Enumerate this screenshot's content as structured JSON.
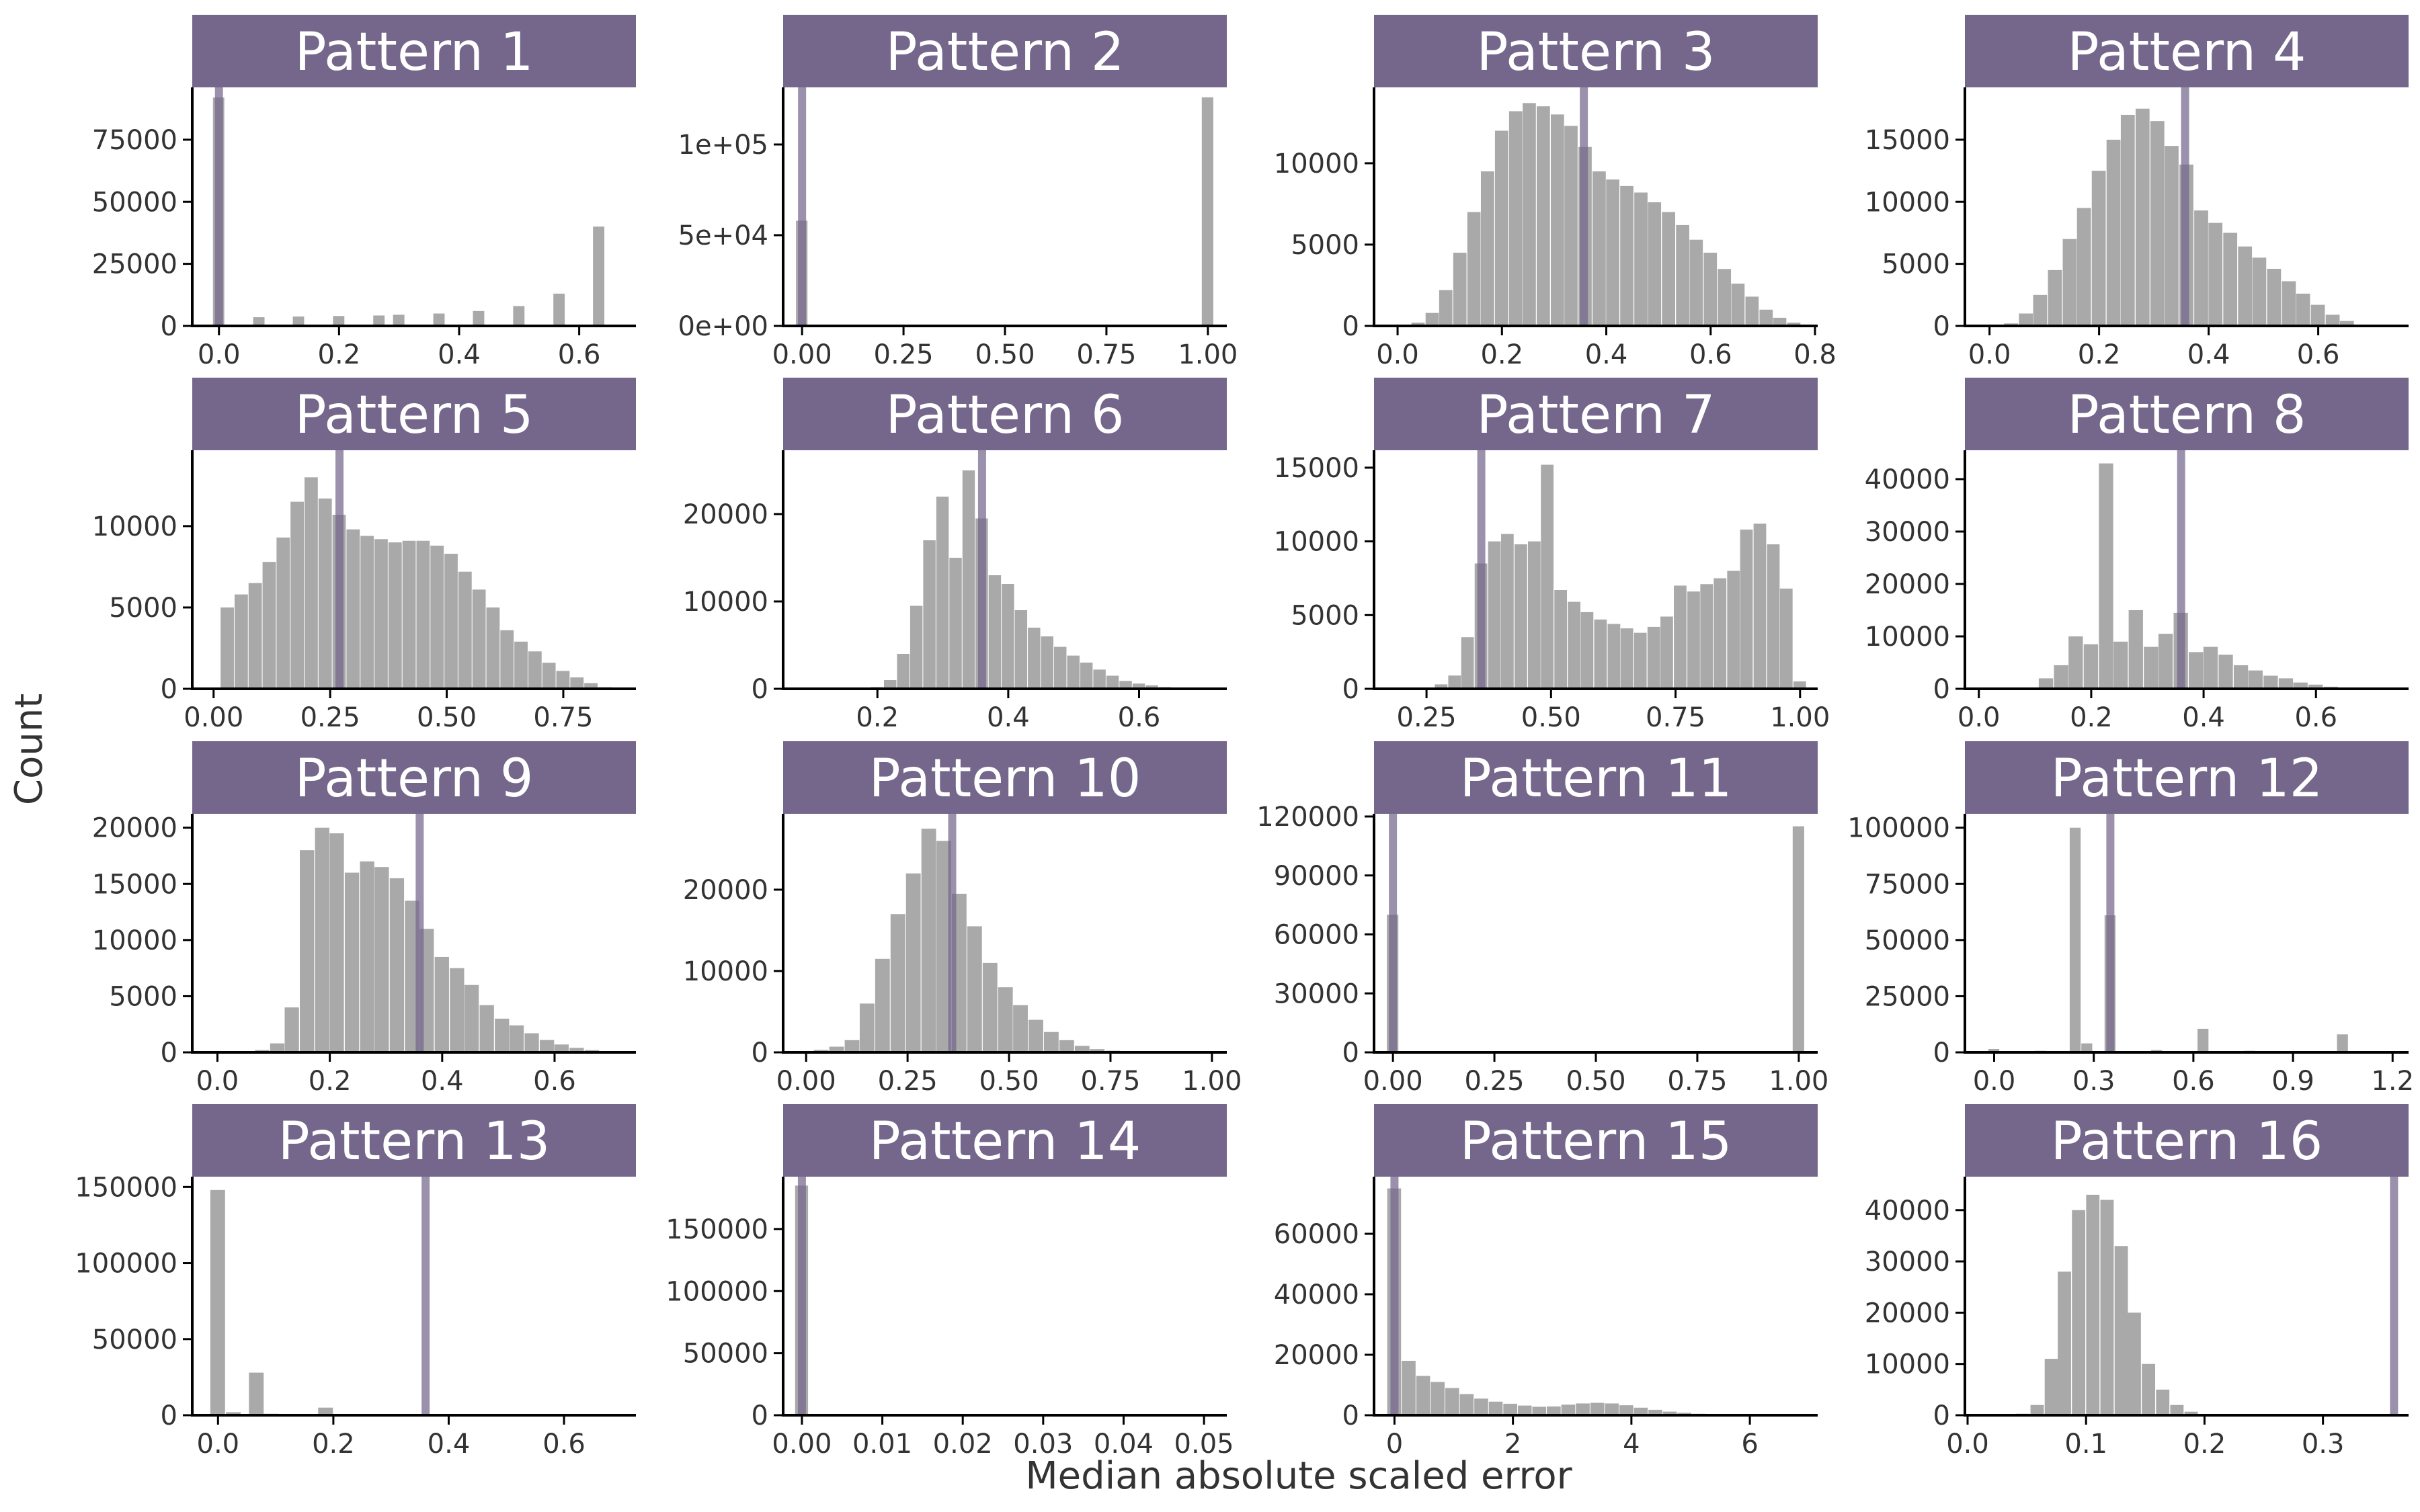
{
  "colors": {
    "strip": "#75668C",
    "bar": "#A9A9A9",
    "vline": "#75668C",
    "axis": "#000000",
    "text": "#333333"
  },
  "labels": {
    "xlabel": "Median absolute scaled error",
    "ylabel": "Count"
  },
  "chart_data": [
    {
      "type": "bar",
      "title": "Pattern 1",
      "xlim": [
        -0.04,
        0.69
      ],
      "ylim": [
        0,
        95000
      ],
      "xticks": [
        0.0,
        0.2,
        0.4,
        0.6
      ],
      "xticklabels": [
        "0.0",
        "0.2",
        "0.4",
        "0.6"
      ],
      "yticks": [
        0,
        25000,
        50000,
        75000
      ],
      "yticklabels": [
        "0",
        "25000",
        "50000",
        "75000"
      ],
      "bin_width": 0.02,
      "vline": 0.0,
      "x": [
        0.0,
        0.067,
        0.133,
        0.2,
        0.267,
        0.3,
        0.367,
        0.433,
        0.5,
        0.567,
        0.633
      ],
      "values": [
        92000,
        3500,
        3800,
        4000,
        4200,
        4500,
        5000,
        6000,
        8000,
        13000,
        40000
      ]
    },
    {
      "type": "bar",
      "title": "Pattern 2",
      "xlim": [
        -0.04,
        1.04
      ],
      "ylim": [
        0,
        130000
      ],
      "xticks": [
        0.0,
        0.25,
        0.5,
        0.75,
        1.0
      ],
      "xticklabels": [
        "0.00",
        "0.25",
        "0.50",
        "0.75",
        "1.00"
      ],
      "yticks": [
        0,
        50000,
        100000
      ],
      "yticklabels": [
        "0e+00",
        "5e+04",
        "1e+05"
      ],
      "bin_width": 0.03,
      "vline": 0.0,
      "x": [
        0.0,
        1.0
      ],
      "values": [
        58000,
        126000
      ]
    },
    {
      "type": "bar",
      "title": "Pattern 3",
      "xlim": [
        -0.04,
        0.8
      ],
      "ylim": [
        0,
        14500
      ],
      "xticks": [
        0.0,
        0.2,
        0.4,
        0.6,
        0.8
      ],
      "xticklabels": [
        "0.0",
        "0.2",
        "0.4",
        "0.6",
        "0.8"
      ],
      "yticks": [
        0,
        5000,
        10000
      ],
      "yticklabels": [
        "0",
        "5000",
        "10000"
      ],
      "bin_width": 0.02667,
      "vline": 0.357,
      "x": [
        0.04,
        0.067,
        0.093,
        0.12,
        0.147,
        0.173,
        0.2,
        0.227,
        0.253,
        0.28,
        0.307,
        0.333,
        0.36,
        0.387,
        0.413,
        0.44,
        0.467,
        0.493,
        0.52,
        0.547,
        0.573,
        0.6,
        0.627,
        0.653,
        0.68,
        0.707,
        0.733,
        0.76
      ],
      "values": [
        200,
        800,
        2200,
        4500,
        7000,
        9500,
        12000,
        13200,
        13700,
        13500,
        13000,
        12300,
        11000,
        9500,
        9000,
        8600,
        8200,
        7600,
        7000,
        6200,
        5300,
        4500,
        3500,
        2600,
        1800,
        1000,
        500,
        200
      ]
    },
    {
      "type": "bar",
      "title": "Pattern 4",
      "xlim": [
        -0.04,
        0.76
      ],
      "ylim": [
        0,
        19000
      ],
      "xticks": [
        0.0,
        0.2,
        0.4,
        0.6
      ],
      "xticklabels": [
        "0.0",
        "0.2",
        "0.4",
        "0.6"
      ],
      "yticks": [
        0,
        5000,
        10000,
        15000
      ],
      "yticklabels": [
        "0",
        "5000",
        "10000",
        "15000"
      ],
      "bin_width": 0.02667,
      "vline": 0.357,
      "x": [
        0.04,
        0.067,
        0.093,
        0.12,
        0.147,
        0.173,
        0.2,
        0.227,
        0.253,
        0.28,
        0.307,
        0.333,
        0.36,
        0.387,
        0.413,
        0.44,
        0.467,
        0.493,
        0.52,
        0.547,
        0.573,
        0.6,
        0.627,
        0.653,
        0.68
      ],
      "values": [
        200,
        1000,
        2500,
        4500,
        7000,
        9500,
        12500,
        15000,
        17000,
        17500,
        16500,
        14500,
        13000,
        9300,
        8300,
        7500,
        6400,
        5500,
        4600,
        3600,
        2600,
        1700,
        900,
        400,
        100
      ]
    },
    {
      "type": "bar",
      "title": "Pattern 5",
      "xlim": [
        -0.04,
        0.9
      ],
      "ylim": [
        0,
        14500
      ],
      "xticks": [
        0.0,
        0.25,
        0.5,
        0.75
      ],
      "xticklabels": [
        "0.00",
        "0.25",
        "0.50",
        "0.75"
      ],
      "yticks": [
        0,
        5000,
        10000
      ],
      "yticklabels": [
        "0",
        "5000",
        "10000"
      ],
      "bin_width": 0.03,
      "vline": 0.27,
      "x": [
        0.03,
        0.06,
        0.09,
        0.12,
        0.15,
        0.18,
        0.21,
        0.24,
        0.27,
        0.3,
        0.33,
        0.36,
        0.39,
        0.42,
        0.45,
        0.48,
        0.51,
        0.54,
        0.57,
        0.6,
        0.63,
        0.66,
        0.69,
        0.72,
        0.75,
        0.78,
        0.81,
        0.84
      ],
      "values": [
        5000,
        5800,
        6500,
        7800,
        9300,
        11500,
        13000,
        11700,
        10700,
        9800,
        9400,
        9200,
        9000,
        9100,
        9100,
        8800,
        8300,
        7200,
        6100,
        5000,
        3600,
        2900,
        2300,
        1600,
        1100,
        700,
        350,
        100
      ]
    },
    {
      "type": "bar",
      "title": "Pattern 6",
      "xlim": [
        0.06,
        0.73
      ],
      "ylim": [
        0,
        27000
      ],
      "xticks": [
        0.2,
        0.4,
        0.6
      ],
      "xticklabels": [
        "0.2",
        "0.4",
        "0.6"
      ],
      "yticks": [
        0,
        10000,
        20000
      ],
      "yticklabels": [
        "0",
        "10000",
        "20000"
      ],
      "bin_width": 0.02,
      "vline": 0.36,
      "x": [
        0.2,
        0.22,
        0.24,
        0.26,
        0.28,
        0.3,
        0.32,
        0.34,
        0.36,
        0.38,
        0.4,
        0.42,
        0.44,
        0.46,
        0.48,
        0.5,
        0.52,
        0.54,
        0.56,
        0.58,
        0.6,
        0.62,
        0.64,
        0.66,
        0.68
      ],
      "values": [
        200,
        1000,
        4000,
        9500,
        17000,
        22000,
        15000,
        25000,
        19500,
        13000,
        12000,
        9000,
        7000,
        6000,
        4800,
        3800,
        3000,
        2200,
        1500,
        900,
        600,
        400,
        200,
        100,
        50
      ]
    },
    {
      "type": "bar",
      "title": "Pattern 7",
      "xlim": [
        0.15,
        1.03
      ],
      "ylim": [
        0,
        16000
      ],
      "xticks": [
        0.25,
        0.5,
        0.75,
        1.0
      ],
      "xticklabels": [
        "0.25",
        "0.50",
        "0.75",
        "1.00"
      ],
      "yticks": [
        0,
        5000,
        10000,
        15000
      ],
      "yticklabels": [
        "0",
        "5000",
        "10000",
        "15000"
      ],
      "bin_width": 0.02667,
      "vline": 0.36,
      "x": [
        0.28,
        0.307,
        0.333,
        0.36,
        0.387,
        0.413,
        0.44,
        0.467,
        0.493,
        0.52,
        0.547,
        0.573,
        0.6,
        0.627,
        0.653,
        0.68,
        0.707,
        0.733,
        0.76,
        0.787,
        0.813,
        0.84,
        0.867,
        0.893,
        0.92,
        0.947,
        0.973,
        1.0
      ],
      "values": [
        300,
        900,
        3500,
        8500,
        10000,
        10500,
        9800,
        10000,
        15200,
        6700,
        5900,
        5200,
        4700,
        4400,
        4100,
        3800,
        4200,
        4900,
        7000,
        6600,
        7100,
        7500,
        8000,
        10800,
        11200,
        9800,
        6800,
        500
      ]
    },
    {
      "type": "bar",
      "title": "Pattern 8",
      "xlim": [
        -0.02,
        0.76
      ],
      "ylim": [
        0,
        45000
      ],
      "xticks": [
        0.0,
        0.2,
        0.4,
        0.6
      ],
      "xticklabels": [
        "0.0",
        "0.2",
        "0.4",
        "0.6"
      ],
      "yticks": [
        0,
        10000,
        20000,
        30000,
        40000
      ],
      "yticklabels": [
        "0",
        "10000",
        "20000",
        "30000",
        "40000"
      ],
      "bin_width": 0.02667,
      "vline": 0.36,
      "x": [
        0.12,
        0.147,
        0.173,
        0.2,
        0.227,
        0.253,
        0.28,
        0.307,
        0.333,
        0.36,
        0.387,
        0.413,
        0.44,
        0.467,
        0.493,
        0.52,
        0.547,
        0.573,
        0.6,
        0.627,
        0.653,
        0.68
      ],
      "values": [
        2000,
        4500,
        10000,
        8500,
        43000,
        9000,
        15000,
        8000,
        10500,
        14500,
        7000,
        8000,
        6500,
        4500,
        3500,
        2500,
        2000,
        1200,
        800,
        400,
        200,
        100
      ]
    },
    {
      "type": "bar",
      "title": "Pattern 9",
      "xlim": [
        -0.04,
        0.74
      ],
      "ylim": [
        0,
        21000
      ],
      "xticks": [
        0.0,
        0.2,
        0.4,
        0.6
      ],
      "xticklabels": [
        "0.0",
        "0.2",
        "0.4",
        "0.6"
      ],
      "yticks": [
        0,
        5000,
        10000,
        15000,
        20000
      ],
      "yticklabels": [
        "0",
        "5000",
        "10000",
        "15000",
        "20000"
      ],
      "bin_width": 0.02667,
      "vline": 0.36,
      "x": [
        0.08,
        0.107,
        0.133,
        0.16,
        0.187,
        0.213,
        0.24,
        0.267,
        0.293,
        0.32,
        0.347,
        0.373,
        0.4,
        0.427,
        0.453,
        0.48,
        0.507,
        0.533,
        0.56,
        0.587,
        0.613,
        0.64,
        0.667,
        0.693
      ],
      "values": [
        200,
        800,
        4000,
        18000,
        20000,
        19500,
        16000,
        17000,
        16500,
        15500,
        13500,
        11000,
        8500,
        7500,
        6000,
        4200,
        3000,
        2400,
        1700,
        1100,
        700,
        400,
        200,
        100
      ]
    },
    {
      "type": "bar",
      "title": "Pattern 10",
      "xlim": [
        -0.05,
        1.03
      ],
      "ylim": [
        0,
        29000
      ],
      "xticks": [
        0.0,
        0.25,
        0.5,
        0.75,
        1.0
      ],
      "xticklabels": [
        "0.00",
        "0.25",
        "0.50",
        "0.75",
        "1.00"
      ],
      "yticks": [
        0,
        10000,
        20000
      ],
      "yticklabels": [
        "0",
        "10000",
        "20000"
      ],
      "bin_width": 0.0378,
      "vline": 0.36,
      "x": [
        0.038,
        0.076,
        0.114,
        0.151,
        0.189,
        0.227,
        0.265,
        0.303,
        0.34,
        0.378,
        0.416,
        0.454,
        0.492,
        0.529,
        0.567,
        0.605,
        0.643,
        0.681,
        0.718,
        0.756,
        0.794,
        0.832,
        0.87,
        0.907
      ],
      "values": [
        300,
        700,
        1500,
        6000,
        11500,
        17000,
        22000,
        27500,
        26000,
        19500,
        15500,
        11000,
        8000,
        5800,
        4000,
        2500,
        1500,
        800,
        400,
        200,
        100,
        50,
        50,
        20
      ]
    },
    {
      "type": "bar",
      "title": "Pattern 11",
      "xlim": [
        -0.04,
        1.04
      ],
      "ylim": [
        0,
        120000
      ],
      "xticks": [
        0.0,
        0.25,
        0.5,
        0.75,
        1.0
      ],
      "xticklabels": [
        "0.00",
        "0.25",
        "0.50",
        "0.75",
        "1.00"
      ],
      "yticks": [
        0,
        30000,
        60000,
        90000,
        120000
      ],
      "yticklabels": [
        "0",
        "30000",
        "60000",
        "90000",
        "120000"
      ],
      "bin_width": 0.03,
      "vline": 0.0,
      "x": [
        0.0,
        1.0
      ],
      "values": [
        70000,
        115000
      ]
    },
    {
      "type": "bar",
      "title": "Pattern 12",
      "xlim": [
        -0.08,
        1.24
      ],
      "ylim": [
        0,
        105000
      ],
      "xticks": [
        0.0,
        0.3,
        0.6,
        0.9,
        1.2
      ],
      "xticklabels": [
        "0.0",
        "0.3",
        "0.6",
        "0.9",
        "1.2"
      ],
      "yticks": [
        0,
        25000,
        50000,
        75000,
        100000
      ],
      "yticklabels": [
        "0",
        "25000",
        "50000",
        "75000",
        "100000"
      ],
      "bin_width": 0.035,
      "vline": 0.35,
      "x": [
        0.0,
        0.14,
        0.245,
        0.28,
        0.35,
        0.42,
        0.49,
        0.63,
        0.77,
        0.84,
        1.05
      ],
      "values": [
        1500,
        700,
        100000,
        4000,
        61000,
        500,
        1000,
        10500,
        700,
        500,
        8000
      ]
    },
    {
      "type": "bar",
      "title": "Pattern 13",
      "xlim": [
        -0.04,
        0.72
      ],
      "ylim": [
        0,
        155000
      ],
      "xticks": [
        0.0,
        0.2,
        0.4,
        0.6
      ],
      "xticklabels": [
        "0.0",
        "0.2",
        "0.4",
        "0.6"
      ],
      "yticks": [
        0,
        50000,
        100000,
        150000
      ],
      "yticklabels": [
        "0",
        "50000",
        "100000",
        "150000"
      ],
      "bin_width": 0.0267,
      "vline": 0.36,
      "x": [
        0.0,
        0.027,
        0.067,
        0.093,
        0.187
      ],
      "values": [
        148000,
        2000,
        28000,
        1000,
        5000
      ]
    },
    {
      "type": "bar",
      "title": "Pattern 14",
      "xlim": [
        -0.002,
        0.0525
      ],
      "ylim": [
        0,
        190000
      ],
      "xticks": [
        0.0,
        0.01,
        0.02,
        0.03,
        0.04,
        0.05
      ],
      "xticklabels": [
        "0.00",
        "0.01",
        "0.02",
        "0.03",
        "0.04",
        "0.05"
      ],
      "yticks": [
        0,
        50000,
        100000,
        150000
      ],
      "yticklabels": [
        "0",
        "50000",
        "100000",
        "150000"
      ],
      "bin_width": 0.0017,
      "vline": 0.0,
      "x": [
        0.0
      ],
      "values": [
        185000
      ]
    },
    {
      "type": "bar",
      "title": "Pattern 15",
      "xlim": [
        -0.3,
        7.1
      ],
      "ylim": [
        0,
        78000
      ],
      "xticks": [
        0,
        2,
        4,
        6
      ],
      "xticklabels": [
        "0",
        "2",
        "4",
        "6"
      ],
      "yticks": [
        0,
        20000,
        40000,
        60000
      ],
      "yticklabels": [
        "0",
        "20000",
        "40000",
        "60000"
      ],
      "bin_width": 0.245,
      "vline": 0.0,
      "x": [
        0.0,
        0.245,
        0.49,
        0.735,
        0.98,
        1.225,
        1.47,
        1.715,
        1.96,
        2.205,
        2.45,
        2.695,
        2.94,
        3.185,
        3.43,
        3.675,
        3.92,
        4.165,
        4.41,
        4.655,
        4.9,
        5.145,
        5.39,
        5.635,
        5.88,
        6.125
      ],
      "values": [
        75000,
        18000,
        13000,
        11000,
        9000,
        7000,
        5500,
        4500,
        3800,
        3200,
        2800,
        2900,
        3500,
        3900,
        4100,
        3900,
        3300,
        2500,
        1800,
        1200,
        800,
        500,
        300,
        150,
        80,
        40
      ]
    },
    {
      "type": "bar",
      "title": "Pattern 16",
      "xlim": [
        0.0,
        0.37
      ],
      "ylim": [
        0,
        46000
      ],
      "xticks": [
        0.0,
        0.1,
        0.2,
        0.3
      ],
      "xticklabels": [
        "0.0",
        "0.1",
        "0.2",
        "0.3"
      ],
      "yticks": [
        0,
        10000,
        20000,
        30000,
        40000
      ],
      "yticklabels": [
        "0",
        "10000",
        "20000",
        "30000",
        "40000"
      ],
      "bin_width": 0.0118,
      "vline": 0.36,
      "x": [
        0.047,
        0.059,
        0.071,
        0.082,
        0.094,
        0.106,
        0.118,
        0.13,
        0.141,
        0.153,
        0.165,
        0.177,
        0.189,
        0.2
      ],
      "values": [
        300,
        2000,
        11000,
        28000,
        40000,
        43000,
        42000,
        33000,
        20000,
        10000,
        5000,
        2000,
        700,
        200
      ]
    }
  ]
}
